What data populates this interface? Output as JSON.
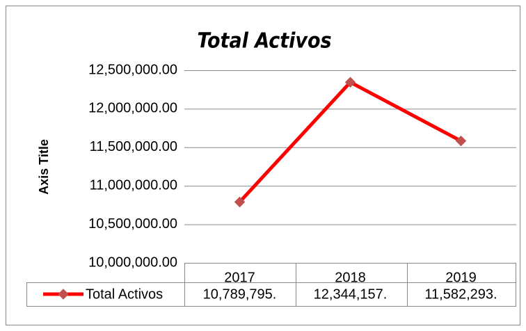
{
  "chart_data": {
    "type": "line",
    "title": "Total Activos",
    "y_label": "Axis Title",
    "categories": [
      "2017",
      "2018",
      "2019"
    ],
    "series": [
      {
        "name": "Total Activos",
        "color": "#ff0000",
        "marker_color": "#c0504d",
        "values": [
          10789795,
          12344157,
          11582293
        ],
        "value_labels": [
          "10,789,795.",
          "12,344,157.",
          "11,582,293."
        ]
      }
    ],
    "ylim": [
      10000000,
      12500000
    ],
    "yticks": [
      {
        "value": 10000000,
        "label": "10,000,000.00"
      },
      {
        "value": 10500000,
        "label": "10,500,000.00"
      },
      {
        "value": 11000000,
        "label": "11,000,000.00"
      },
      {
        "value": 11500000,
        "label": "11,500,000.00"
      },
      {
        "value": 12000000,
        "label": "12,000,000.00"
      },
      {
        "value": 12500000,
        "label": "12,500,000.00"
      }
    ],
    "grid": true,
    "legend": "data-table"
  }
}
